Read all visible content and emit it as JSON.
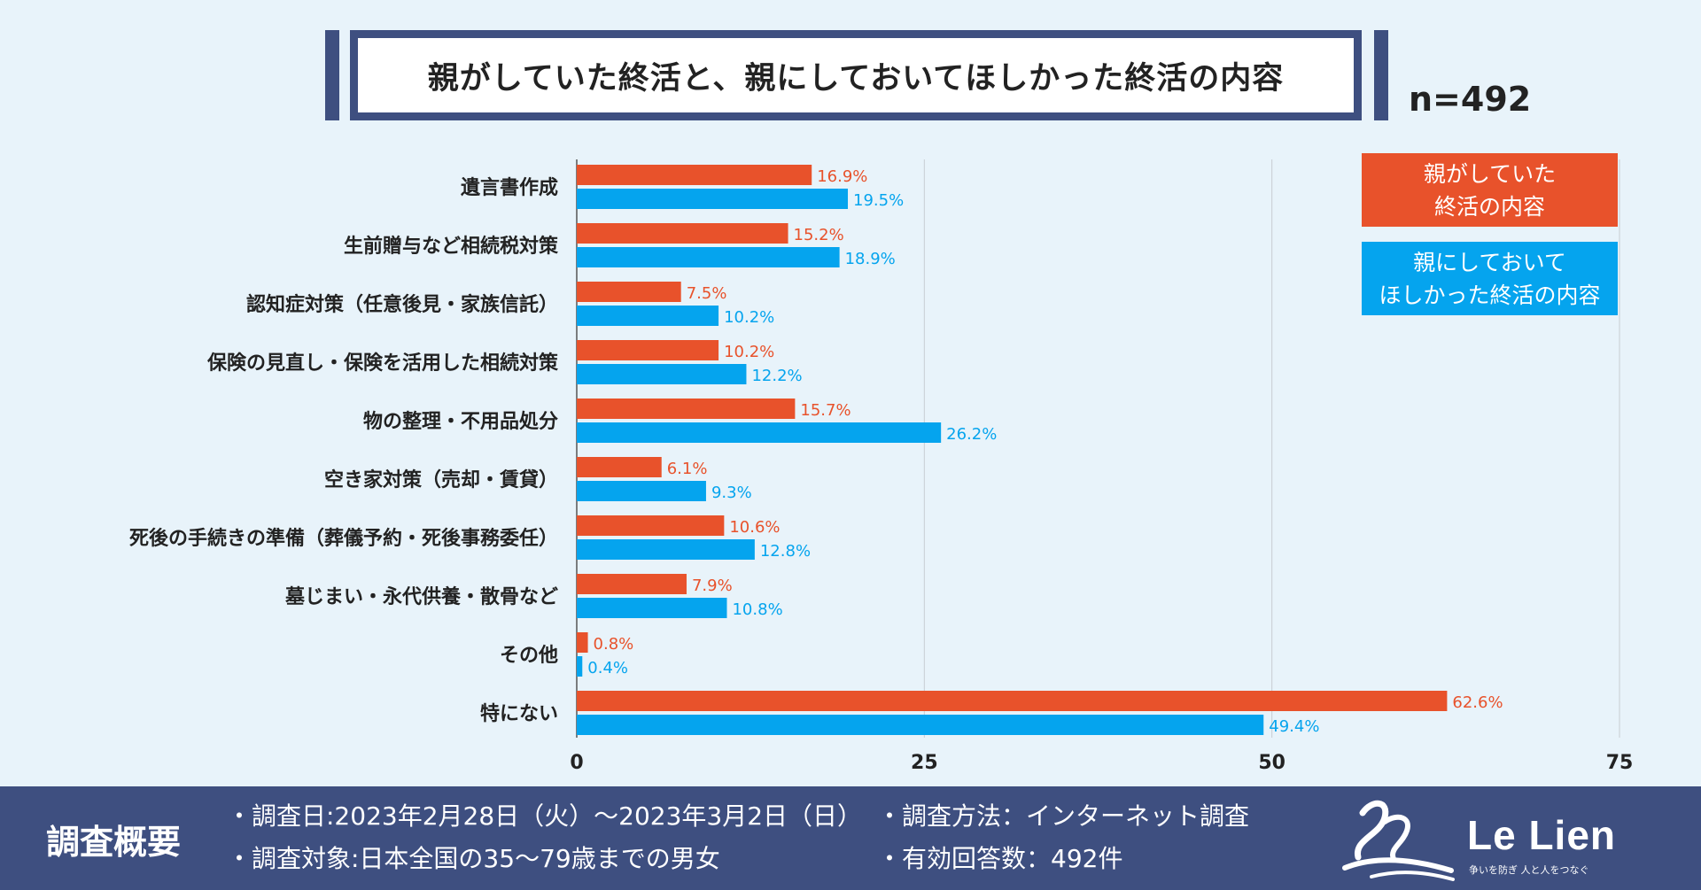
{
  "title": "親がしていた終活と、親にしておいてほしかった終活の内容",
  "sample_size": "n=492",
  "legend": {
    "orange": [
      "親がしていた",
      "終活の内容"
    ],
    "blue": [
      "親にしておいて",
      "ほしかった終活の内容"
    ]
  },
  "colors": {
    "did": "#e8522b",
    "wanted": "#05a4ee",
    "navy": "#3e4f80",
    "background": "#e8f3fa"
  },
  "chart_data": {
    "type": "bar",
    "orientation": "horizontal",
    "categories": [
      "遺言書作成",
      "生前贈与など相続税対策",
      "認知症対策（任意後見・家族信託）",
      "保険の見直し・保険を活用した相続対策",
      "物の整理・不用品処分",
      "空き家対策（売却・賃貸）",
      "死後の手続きの準備（葬儀予約・死後事務委任）",
      "墓じまい・永代供養・散骨など",
      "その他",
      "特にない"
    ],
    "series": [
      {
        "name": "親がしていた終活の内容",
        "color": "#e8522b",
        "values": [
          16.9,
          15.2,
          7.5,
          10.2,
          15.7,
          6.1,
          10.6,
          7.9,
          0.8,
          62.6
        ],
        "labels": [
          "16.9%",
          "15.2%",
          "7.5%",
          "10.2%",
          "15.7%",
          "6.1%",
          "10.6%",
          "7.9%",
          "0.8%",
          "62.6%"
        ]
      },
      {
        "name": "親にしておいてほしかった終活の内容",
        "color": "#05a4ee",
        "values": [
          19.5,
          18.9,
          10.2,
          12.2,
          26.2,
          9.3,
          12.8,
          10.8,
          0.4,
          49.4
        ],
        "labels": [
          "19.5%",
          "18.9%",
          "10.2%",
          "12.2%",
          "26.2%",
          "9.3%",
          "12.8%",
          "10.8%",
          "0.4%",
          "49.4%"
        ]
      }
    ],
    "xlim": [
      0,
      75
    ],
    "xticks": [
      0,
      25,
      50,
      75
    ],
    "xtick_labels": [
      "0",
      "25",
      "50",
      "75"
    ],
    "grid": true,
    "legend_position": "top-right"
  },
  "footer": {
    "heading": "調査概要",
    "items": [
      "・調査日:2023年2月28日（火）～2023年3月2日（日）",
      "・調査対象:日本全国の35～79歳までの男女",
      "・調査方法：インターネット調査",
      "・有効回答数：492件"
    ],
    "logo_name": "Le Lien",
    "logo_tagline": "争いを防ぎ 人と人をつなぐ"
  }
}
